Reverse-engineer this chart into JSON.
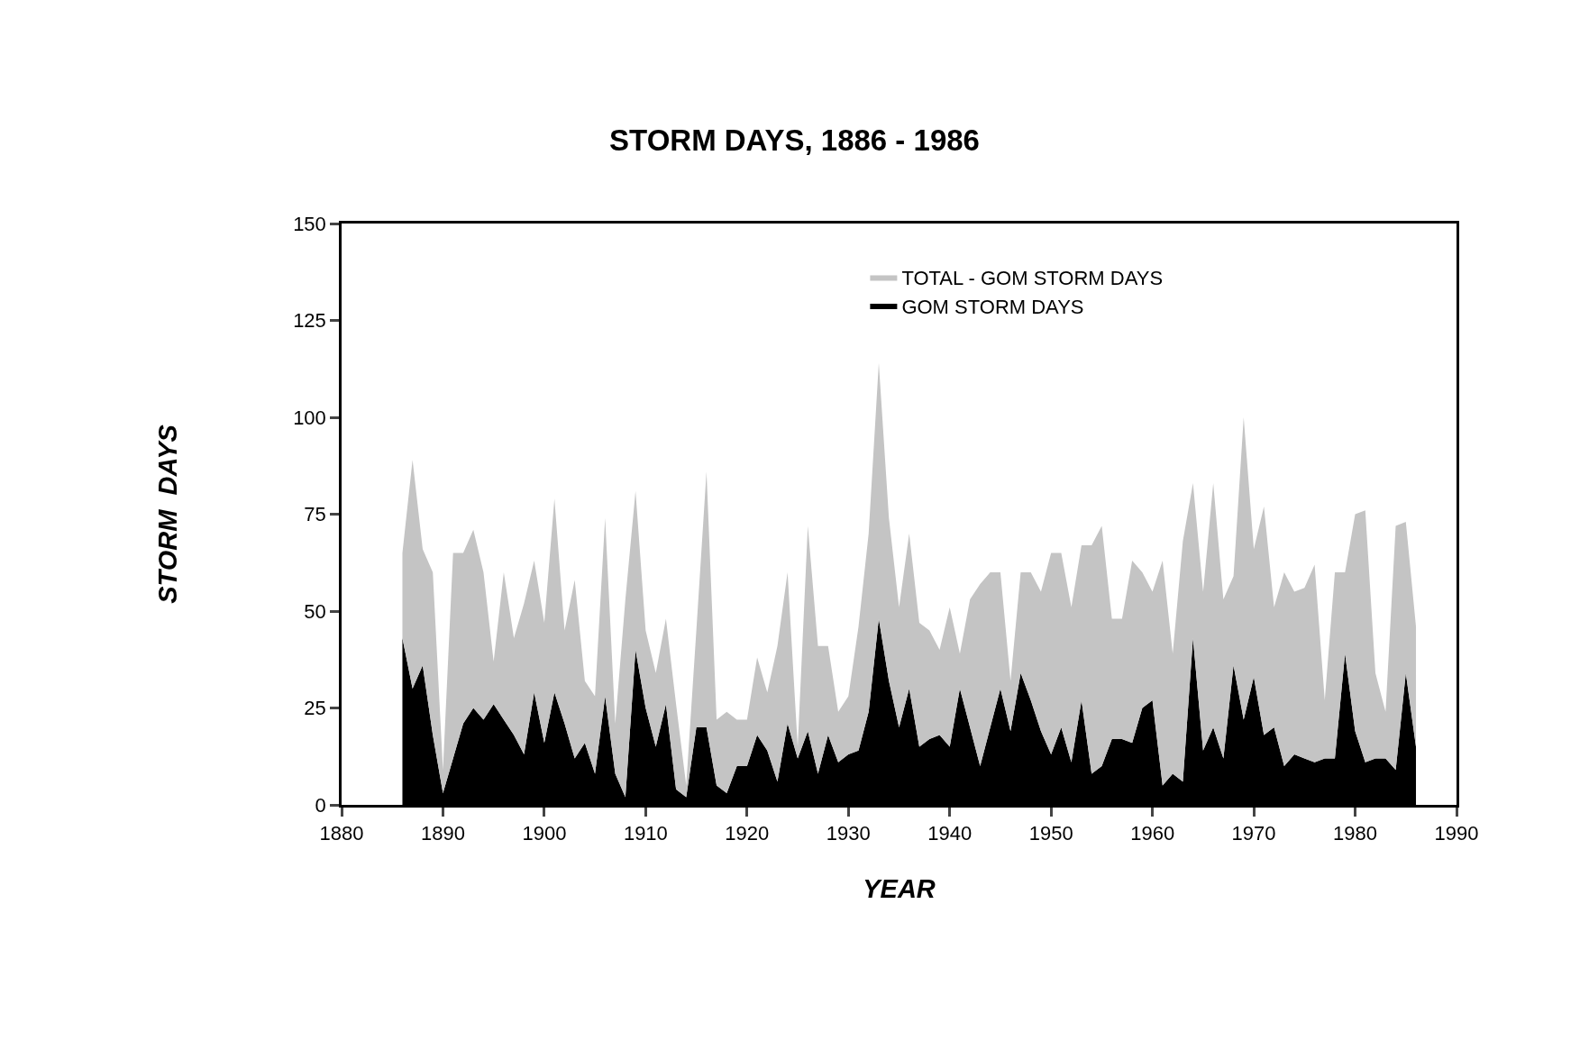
{
  "chart_data": {
    "type": "area",
    "title": "STORM DAYS, 1886 - 1986",
    "xlabel": "YEAR",
    "ylabel": "STORM  DAYS",
    "stacked": true,
    "x": [
      1886,
      1887,
      1888,
      1889,
      1890,
      1891,
      1892,
      1893,
      1894,
      1895,
      1896,
      1897,
      1898,
      1899,
      1900,
      1901,
      1902,
      1903,
      1904,
      1905,
      1906,
      1907,
      1908,
      1909,
      1910,
      1911,
      1912,
      1913,
      1914,
      1915,
      1916,
      1917,
      1918,
      1919,
      1920,
      1921,
      1922,
      1923,
      1924,
      1925,
      1926,
      1927,
      1928,
      1929,
      1930,
      1931,
      1932,
      1933,
      1934,
      1935,
      1936,
      1937,
      1938,
      1939,
      1940,
      1941,
      1942,
      1943,
      1944,
      1945,
      1946,
      1947,
      1948,
      1949,
      1950,
      1951,
      1952,
      1953,
      1954,
      1955,
      1956,
      1957,
      1958,
      1959,
      1960,
      1961,
      1962,
      1963,
      1964,
      1965,
      1966,
      1967,
      1968,
      1969,
      1970,
      1971,
      1972,
      1973,
      1974,
      1975,
      1976,
      1977,
      1978,
      1979,
      1980,
      1981,
      1982,
      1983,
      1984,
      1985,
      1986
    ],
    "series": [
      {
        "name": "GOM STORM DAYS",
        "color": "#000000",
        "values": [
          43,
          30,
          36,
          18,
          3,
          12,
          21,
          25,
          22,
          26,
          22,
          18,
          13,
          29,
          16,
          29,
          21,
          12,
          16,
          8,
          28,
          8,
          2,
          40,
          25,
          15,
          26,
          4,
          2,
          20,
          20,
          5,
          3,
          10,
          10,
          18,
          14,
          6,
          21,
          12,
          19,
          8,
          18,
          11,
          13,
          14,
          24,
          48,
          32,
          20,
          30,
          15,
          17,
          18,
          15,
          30,
          20,
          10,
          20,
          30,
          19,
          34,
          27,
          19,
          13,
          20,
          11,
          27,
          8,
          10,
          17,
          17,
          16,
          25,
          27,
          5,
          8,
          6,
          43,
          14,
          20,
          12,
          36,
          22,
          33,
          18,
          20,
          10,
          13,
          12,
          11,
          12,
          12,
          39,
          19,
          11,
          12,
          12,
          9,
          34,
          15
        ]
      },
      {
        "name": "TOTAL - GOM STORM DAYS",
        "color": "#c4c4c4",
        "values": [
          22,
          59,
          30,
          42,
          6,
          53,
          44,
          46,
          38,
          11,
          38,
          25,
          39,
          34,
          31,
          50,
          24,
          46,
          16,
          20,
          46,
          13,
          51,
          41,
          20,
          19,
          22,
          22,
          3,
          25,
          66,
          17,
          21,
          12,
          12,
          20,
          15,
          35,
          39,
          3,
          53,
          33,
          23,
          13,
          15,
          32,
          46,
          66,
          42,
          31,
          40,
          32,
          28,
          22,
          36,
          9,
          33,
          47,
          40,
          30,
          13,
          26,
          33,
          36,
          52,
          45,
          40,
          40,
          59,
          62,
          31,
          31,
          47,
          35,
          28,
          58,
          31,
          62,
          40,
          41,
          63,
          41,
          23,
          78,
          33,
          59,
          31,
          50,
          42,
          44,
          51,
          15,
          48,
          21,
          56,
          65,
          22,
          12,
          63,
          39,
          31
        ]
      }
    ],
    "xlim": [
      1880,
      1990
    ],
    "xticks": [
      1880,
      1890,
      1900,
      1910,
      1920,
      1930,
      1940,
      1950,
      1960,
      1970,
      1980,
      1990
    ],
    "ylim": [
      0,
      150
    ],
    "yticks": [
      0,
      25,
      50,
      75,
      100,
      125,
      150
    ],
    "grid": false,
    "legend": "top right"
  }
}
